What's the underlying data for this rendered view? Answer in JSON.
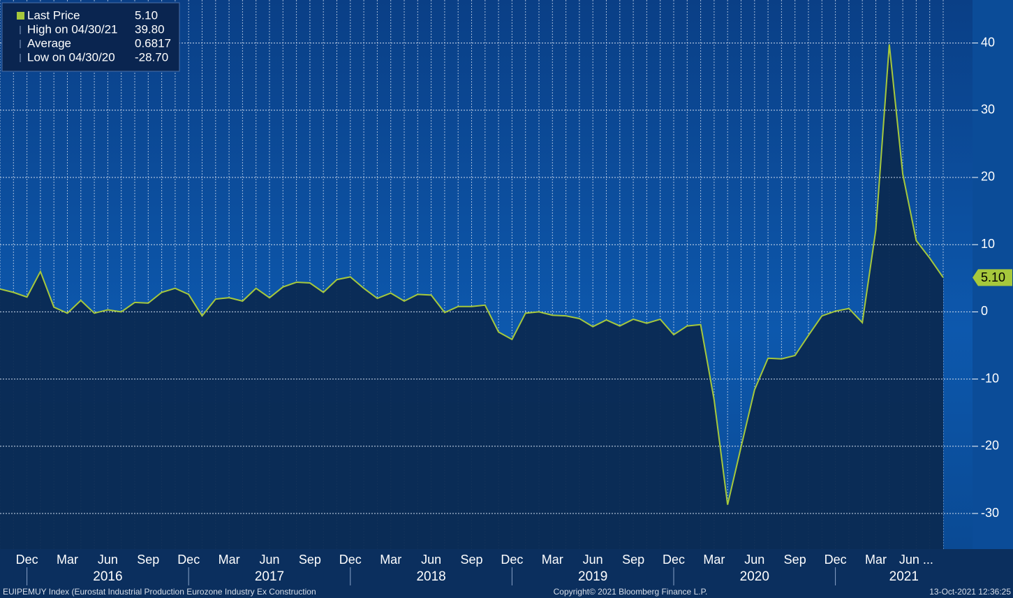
{
  "chart_data": {
    "type": "area",
    "series": [
      {
        "name": "Last Price",
        "color": "#a6c83c",
        "values": [
          3.4,
          2.9,
          2.2,
          6.0,
          0.7,
          -0.2,
          1.7,
          -0.2,
          0.3,
          0.0,
          1.4,
          1.3,
          2.9,
          3.5,
          2.6,
          -0.6,
          1.9,
          2.1,
          1.6,
          3.5,
          2.1,
          3.7,
          4.4,
          4.3,
          2.9,
          4.8,
          5.2,
          3.5,
          2.0,
          2.8,
          1.6,
          2.6,
          2.5,
          -0.1,
          0.8,
          0.8,
          1.0,
          -3.0,
          -4.1,
          -0.2,
          0.0,
          -0.5,
          -0.6,
          -1.0,
          -2.2,
          -1.2,
          -2.1,
          -1.1,
          -1.7,
          -1.1,
          -3.4,
          -2.1,
          -1.9,
          -13.1,
          -28.7,
          -20.1,
          -11.6,
          -6.9,
          -7.0,
          -6.5,
          -3.5,
          -0.6,
          0.1,
          0.5,
          -1.6,
          12.2,
          39.8,
          20.5,
          10.6,
          8.0,
          5.1
        ]
      }
    ],
    "categories": [
      null,
      null,
      "Dec",
      null,
      null,
      "Mar",
      null,
      null,
      "Jun",
      null,
      null,
      "Sep",
      null,
      null,
      "Dec",
      null,
      null,
      "Mar",
      null,
      null,
      "Jun",
      null,
      null,
      "Sep",
      null,
      null,
      "Dec",
      null,
      null,
      "Mar",
      null,
      null,
      "Jun",
      null,
      null,
      "Sep",
      null,
      null,
      "Dec",
      null,
      null,
      "Mar",
      null,
      null,
      "Jun",
      null,
      null,
      "Sep",
      null,
      null,
      "Dec",
      null,
      null,
      "Mar",
      null,
      null,
      "Jun",
      null,
      null,
      "Sep",
      null,
      null,
      "Dec",
      null,
      null,
      "Mar",
      null,
      null,
      "Jun ...",
      null,
      null
    ],
    "year_labels": [
      "2016",
      "2017",
      "2018",
      "2019",
      "2020",
      "2021"
    ],
    "ylim": [
      -35.3,
      46.4
    ],
    "yticks": [
      -30,
      -20,
      -10,
      0,
      10,
      20,
      30,
      40
    ],
    "grid": true,
    "legend": [
      {
        "name": "Last Price",
        "value": "5.10"
      },
      {
        "name": "High on 04/30/21",
        "value": "39.80"
      },
      {
        "name": "Average",
        "value": "0.6817"
      },
      {
        "name": "Low on 04/30/20",
        "value": "-28.70"
      }
    ],
    "footer": {
      "left": "EUIPEMUY Index (Eurostat Industrial Production Eurozone Industry Ex Construction",
      "center": "Copyright© 2021 Bloomberg Finance L.P.",
      "right": "13-Oct-2021 12:36:25"
    }
  }
}
